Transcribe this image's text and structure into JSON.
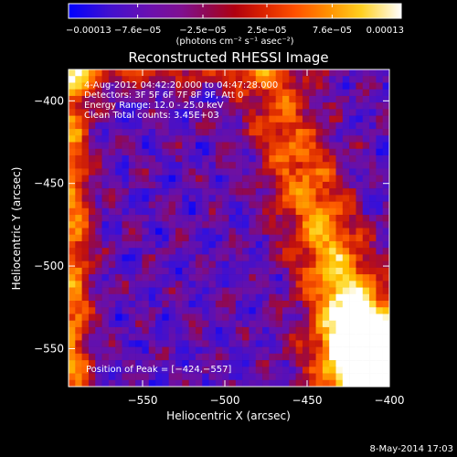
{
  "chart_data": {
    "type": "heatmap",
    "title": "Reconstructed RHESSI Image",
    "xlabel": "Heliocentric X (arcsec)",
    "ylabel": "Heliocentric Y (arcsec)",
    "xlim": [
      -595,
      -400
    ],
    "ylim": [
      -573,
      -381
    ],
    "x_ticks": [
      {
        "value": -550,
        "label": "−550"
      },
      {
        "value": -500,
        "label": "−500"
      },
      {
        "value": -450,
        "label": "−450"
      },
      {
        "value": -400,
        "label": "−400"
      }
    ],
    "y_ticks": [
      {
        "value": -550,
        "label": "−550"
      },
      {
        "value": -500,
        "label": "−500"
      },
      {
        "value": -450,
        "label": "−450"
      },
      {
        "value": -400,
        "label": "−400"
      }
    ],
    "grid": false,
    "annotations": [
      "4-Aug-2012 04:42:20.000 to 04:47:28.000",
      "Detectors: 3F 5F 6F 7F 8F 9F, Att 0",
      "Energy Range: 12.0 - 25.0 keV",
      "Clean     Total counts: 3.45E+03"
    ],
    "peak_label": "Position of Peak = [−424,−557]",
    "peak_position": [
      -424,
      -557
    ],
    "colorbar": {
      "tick_labels": [
        "−0.00013",
        "−7.6e−05",
        "−2.5e−05",
        "2.5e−05",
        "7.6e−05",
        "0.00013"
      ],
      "tick_values": [
        -0.00013,
        -7.6e-05,
        -2.5e-05,
        2.5e-05,
        7.6e-05,
        0.00013
      ],
      "range": [
        -0.00013,
        0.00013
      ],
      "units_label": "(photons cm⁻² s⁻¹ asec⁻²)",
      "colormap": "blue-purple-red-orange-yellow-white"
    },
    "grid_size": [
      48,
      48
    ]
  },
  "footer_date": "8-May-2014 17:03",
  "colors": {
    "background": "#000000",
    "foreground": "#ffffff",
    "map": [
      "#0000ff",
      "#3010e0",
      "#5010c0",
      "#7010a0",
      "#900850",
      "#c01010",
      "#e03000",
      "#ff6000",
      "#ff9000",
      "#ffc000",
      "#ffe040",
      "#ffffff"
    ]
  }
}
